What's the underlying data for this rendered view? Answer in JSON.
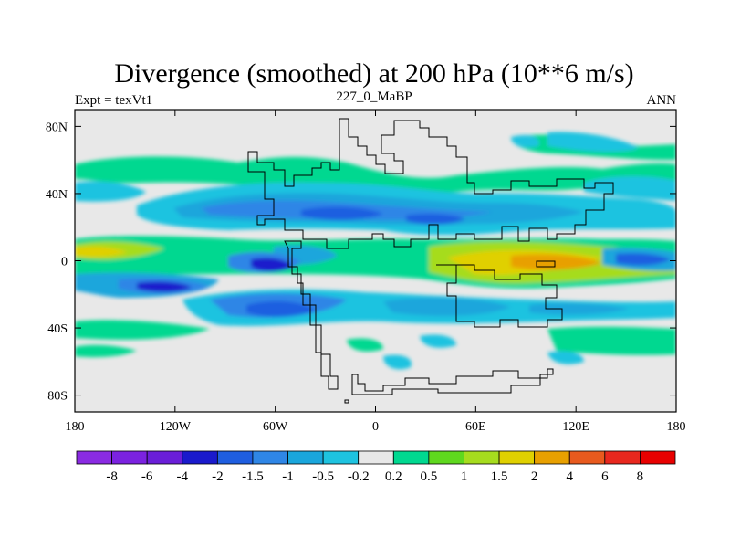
{
  "chart_data": {
    "type": "heatmap",
    "title": "Divergence (smoothed) at 200 hPa (10**6 m/s)",
    "subtitle_left": "Expt = texVt1",
    "subtitle_center": "227_0_MaBP",
    "subtitle_right": "ANN",
    "x_range": [
      -180,
      180
    ],
    "y_range": [
      -90,
      90
    ],
    "x_ticks": [
      {
        "value": -180,
        "label": "180"
      },
      {
        "value": -120,
        "label": "120W"
      },
      {
        "value": -60,
        "label": "60W"
      },
      {
        "value": 0,
        "label": "0"
      },
      {
        "value": 60,
        "label": "60E"
      },
      {
        "value": 120,
        "label": "120E"
      },
      {
        "value": 180,
        "label": "180"
      }
    ],
    "y_ticks": [
      {
        "value": 80,
        "label": "80N"
      },
      {
        "value": 40,
        "label": "40N"
      },
      {
        "value": 0,
        "label": "0"
      },
      {
        "value": -40,
        "label": "40S"
      },
      {
        "value": -80,
        "label": "80S"
      }
    ],
    "colorbar": {
      "colors": [
        "#8a2be2",
        "#7b22e0",
        "#6a1ed8",
        "#1a1acc",
        "#1f5ee0",
        "#2f86e6",
        "#1aa6dc",
        "#1ec3e0",
        "#e8e8e8",
        "#00d890",
        "#5fd81e",
        "#a6dc1e",
        "#e0d000",
        "#e8a000",
        "#e85a1e",
        "#e8281e",
        "#e80000"
      ],
      "labels": [
        "-8",
        "-6",
        "-4",
        "-2",
        "-1.5",
        "-1",
        "-0.5",
        "-0.2",
        "0.2",
        "0.5",
        "1",
        "1.5",
        "2",
        "4",
        "6",
        "8"
      ]
    },
    "bands": [
      {
        "lat": [
          52,
          60
        ],
        "lon": [
          -180,
          -100
        ],
        "value": "0.2-0.5"
      },
      {
        "lat": [
          32,
          50
        ],
        "lon": [
          -120,
          -50
        ],
        "value": "-1 to -2"
      },
      {
        "lat": [
          20,
          45
        ],
        "lon": [
          -60,
          40
        ],
        "value": "-0.5 to -2"
      },
      {
        "lat": [
          22,
          45
        ],
        "lon": [
          50,
          180
        ],
        "value": "-0.2 to -1"
      },
      {
        "lat": [
          0,
          12
        ],
        "lon": [
          -180,
          -100
        ],
        "value": "0.5 to 2"
      },
      {
        "lat": [
          -20,
          15
        ],
        "lon": [
          30,
          160
        ],
        "value": "0.5 to 4"
      },
      {
        "lat": [
          -8,
          4
        ],
        "lon": [
          -80,
          -50
        ],
        "value": "-1.5 to -2"
      },
      {
        "lat": [
          -20,
          -10
        ],
        "lon": [
          -160,
          -90
        ],
        "value": "-1 to -2"
      },
      {
        "lat": [
          -40,
          -25
        ],
        "lon": [
          -100,
          -30
        ],
        "value": "-1 to -2"
      },
      {
        "lat": [
          -45,
          -25
        ],
        "lon": [
          0,
          140
        ],
        "value": "-0.2 to -1"
      },
      {
        "lat": [
          -55,
          -45
        ],
        "lon": [
          80,
          180
        ],
        "value": "0.2 to 0.5"
      }
    ]
  }
}
